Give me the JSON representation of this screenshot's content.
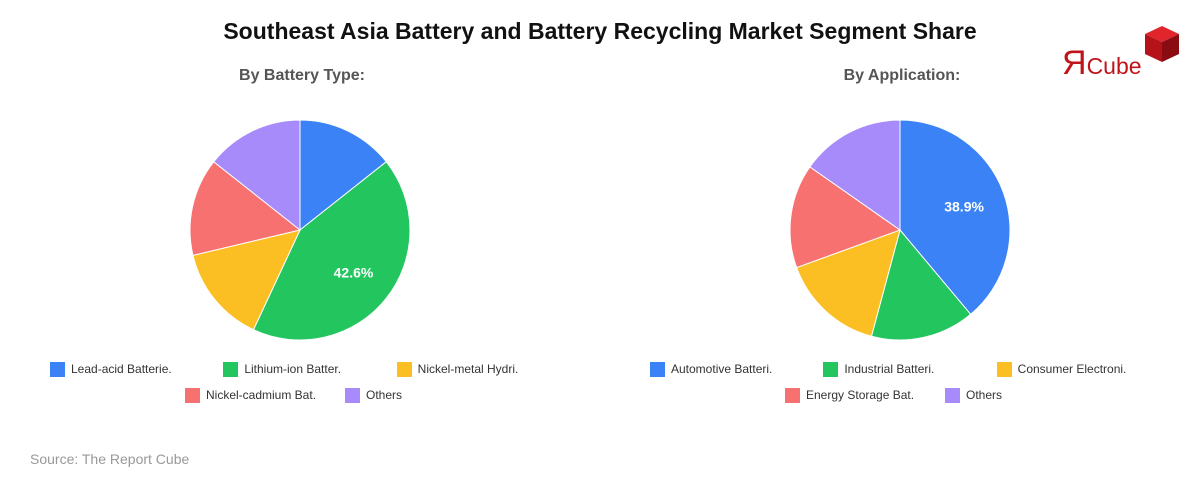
{
  "title": "Southeast Asia Battery and Battery Recycling Market Segment Share",
  "source": "Source: The Report Cube",
  "logo": {
    "mark": "Я",
    "text": "Cube",
    "icon": "red-cube-icon",
    "color": "#c0141a"
  },
  "chart_data": [
    {
      "type": "pie",
      "title": "By Battery Type:",
      "categories": [
        "Lead-acid Batterie.",
        "Lithium-ion Batter.",
        "Nickel-metal Hydri.",
        "Nickel-cadmium Bat.",
        "Others"
      ],
      "values": [
        14.35,
        42.6,
        14.35,
        14.35,
        14.35
      ],
      "colors": [
        "#3b82f6",
        "#22c55e",
        "#fbbf24",
        "#f87171",
        "#a78bfa"
      ],
      "data_labels": [
        {
          "index": 1,
          "text": "42.6%"
        }
      ],
      "legend_position": "bottom",
      "start_angle": "top, clockwise"
    },
    {
      "type": "pie",
      "title": "By Application:",
      "categories": [
        "Automotive Batteri.",
        "Industrial Batteri.",
        "Consumer Electroni.",
        "Energy Storage Bat.",
        "Others"
      ],
      "values": [
        38.9,
        15.275,
        15.275,
        15.275,
        15.275
      ],
      "colors": [
        "#3b82f6",
        "#22c55e",
        "#fbbf24",
        "#f87171",
        "#a78bfa"
      ],
      "data_labels": [
        {
          "index": 0,
          "text": "38.9%"
        }
      ],
      "legend_position": "bottom",
      "start_angle": "top, clockwise"
    }
  ]
}
